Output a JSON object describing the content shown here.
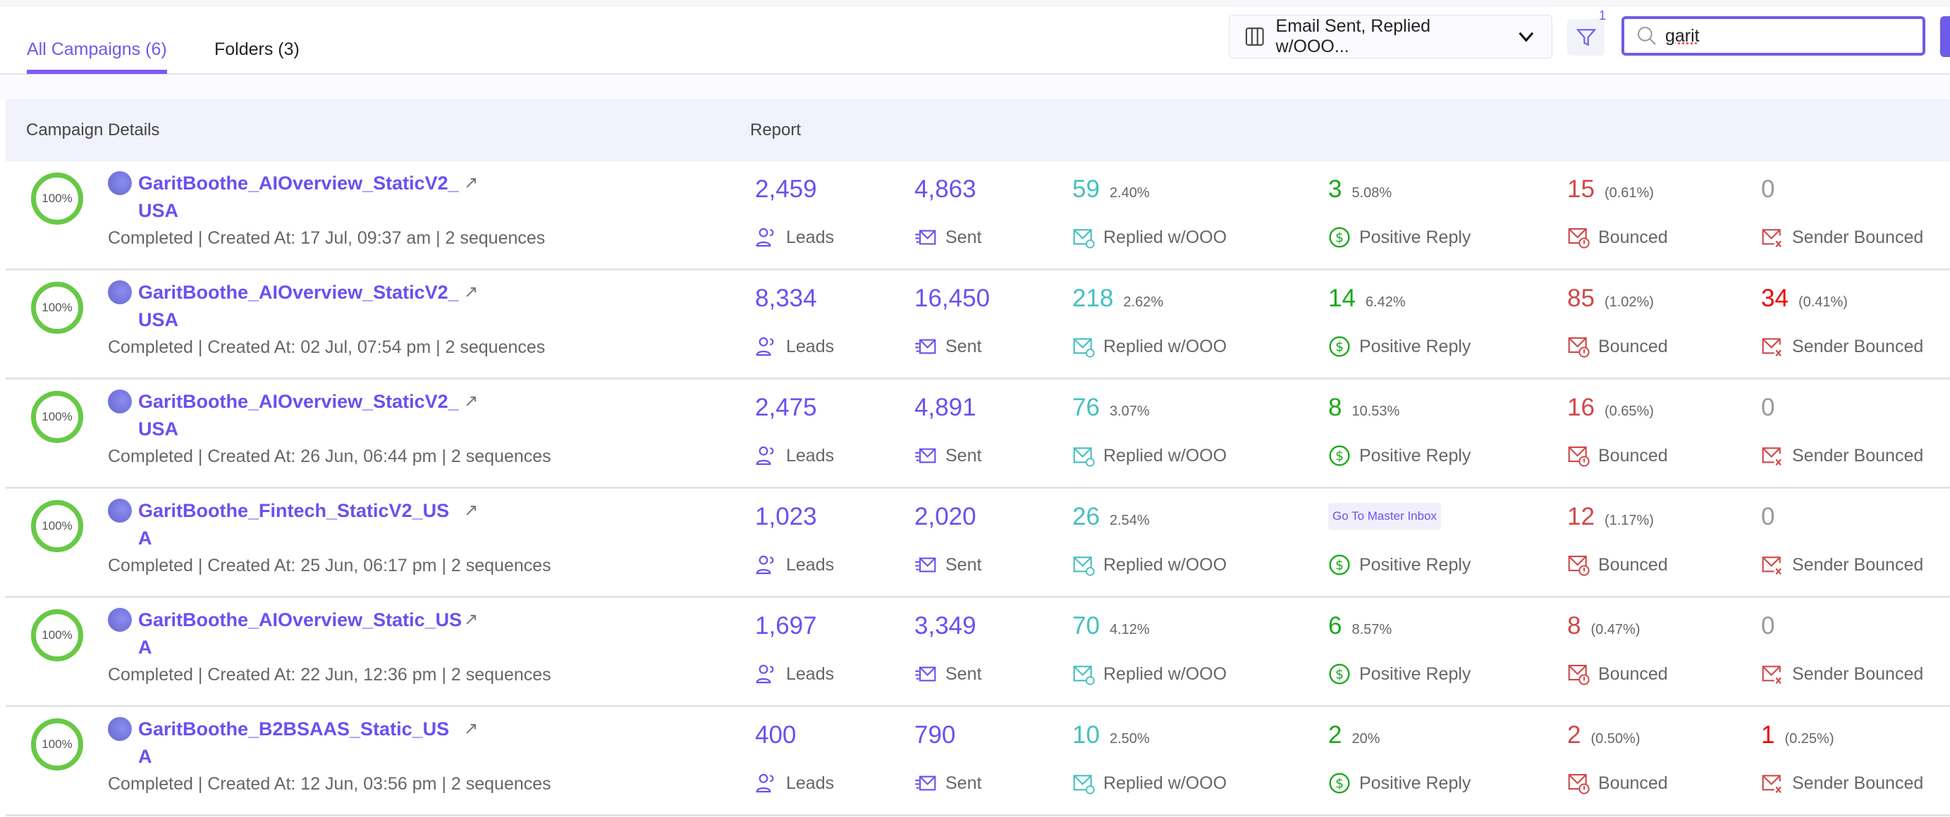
{
  "tabs": [
    {
      "label": "All Campaigns (6)",
      "active": true
    },
    {
      "label": "Folders (3)",
      "active": false
    }
  ],
  "toolbar": {
    "columns_label": "Email Sent, Replied w/OOO...",
    "filter_count": "1",
    "search_value": "garit"
  },
  "table": {
    "headers": [
      "Campaign Details",
      "Report"
    ]
  },
  "labels": {
    "leads": "Leads",
    "sent": "Sent",
    "replied": "Replied w/OOO",
    "positive": "Positive Reply",
    "bounced": "Bounced",
    "sender_bounced": "Sender Bounced",
    "goto": "Go To Master Inbox"
  },
  "colors": {
    "accent": "#6c4ff0",
    "replied": "#45bfbf",
    "positive": "#1aa81a",
    "bounced": "#d04848",
    "progress": "#67c946"
  },
  "rows": [
    {
      "progress": "100%",
      "name": "GaritBoothe_AIOverview_StaticV2_USA",
      "meta": "Completed | Created At: 17 Jul, 09:37 am | 2 sequences",
      "leads": "2,459",
      "sent": "4,863",
      "replied": "59",
      "replied_pct": "2.40%",
      "positive": "3",
      "positive_pct": "5.08%",
      "bounced": "15",
      "bounced_pct": "(0.61%)",
      "sender_bounced": "0",
      "sender_bounced_pct": ""
    },
    {
      "progress": "100%",
      "name": "GaritBoothe_AIOverview_StaticV2_USA",
      "meta": "Completed | Created At: 02 Jul, 07:54 pm | 2 sequences",
      "leads": "8,334",
      "sent": "16,450",
      "replied": "218",
      "replied_pct": "2.62%",
      "positive": "14",
      "positive_pct": "6.42%",
      "bounced": "85",
      "bounced_pct": "(1.02%)",
      "sender_bounced": "34",
      "sender_bounced_pct": "(0.41%)"
    },
    {
      "progress": "100%",
      "name": "GaritBoothe_AIOverview_StaticV2_USA",
      "meta": "Completed | Created At: 26 Jun, 06:44 pm | 2 sequences",
      "leads": "2,475",
      "sent": "4,891",
      "replied": "76",
      "replied_pct": "3.07%",
      "positive": "8",
      "positive_pct": "10.53%",
      "bounced": "16",
      "bounced_pct": "(0.65%)",
      "sender_bounced": "0",
      "sender_bounced_pct": ""
    },
    {
      "progress": "100%",
      "name": "GaritBoothe_Fintech_StaticV2_USA",
      "meta": "Completed | Created At: 25 Jun, 06:17 pm | 2 sequences",
      "leads": "1,023",
      "sent": "2,020",
      "replied": "26",
      "replied_pct": "2.54%",
      "positive": "",
      "positive_pct": "",
      "goto": true,
      "bounced": "12",
      "bounced_pct": "(1.17%)",
      "sender_bounced": "0",
      "sender_bounced_pct": ""
    },
    {
      "progress": "100%",
      "name": "GaritBoothe_AIOverview_Static_USA",
      "meta": "Completed | Created At: 22 Jun, 12:36 pm | 2 sequences",
      "leads": "1,697",
      "sent": "3,349",
      "replied": "70",
      "replied_pct": "4.12%",
      "positive": "6",
      "positive_pct": "8.57%",
      "bounced": "8",
      "bounced_pct": "(0.47%)",
      "sender_bounced": "0",
      "sender_bounced_pct": ""
    },
    {
      "progress": "100%",
      "name": "GaritBoothe_B2BSAAS_Static_USA",
      "meta": "Completed | Created At: 12 Jun, 03:56 pm | 2 sequences",
      "leads": "400",
      "sent": "790",
      "replied": "10",
      "replied_pct": "2.50%",
      "positive": "2",
      "positive_pct": "20%",
      "bounced": "2",
      "bounced_pct": "(0.50%)",
      "sender_bounced": "1",
      "sender_bounced_pct": "(0.25%)"
    }
  ]
}
